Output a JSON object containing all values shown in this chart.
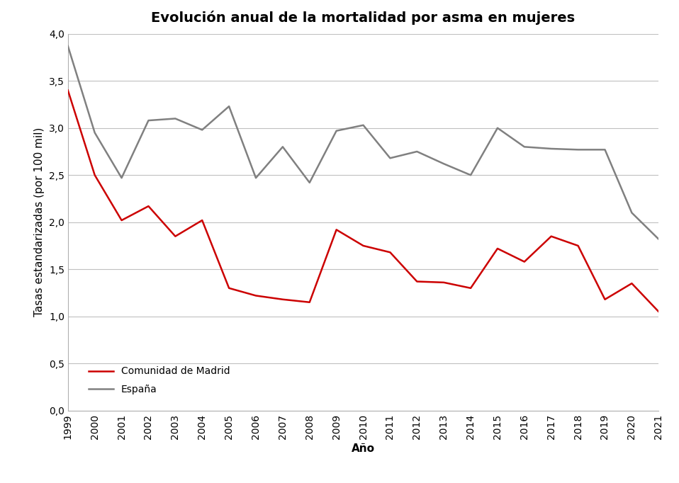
{
  "title": "Evolución anual de la mortalidad por asma en mujeres",
  "xlabel": "Año",
  "ylabel": "Tasas estandarizadas (por 100 mil)",
  "years": [
    1999,
    2000,
    2001,
    2002,
    2003,
    2004,
    2005,
    2006,
    2007,
    2008,
    2009,
    2010,
    2011,
    2012,
    2013,
    2014,
    2015,
    2016,
    2017,
    2018,
    2019,
    2020,
    2021
  ],
  "madrid": [
    3.4,
    2.5,
    2.02,
    2.17,
    1.85,
    2.02,
    1.3,
    1.22,
    1.18,
    1.15,
    1.92,
    1.75,
    1.68,
    1.37,
    1.36,
    1.3,
    1.72,
    1.58,
    1.85,
    1.75,
    1.18,
    1.35,
    1.05
  ],
  "espana": [
    3.87,
    2.95,
    2.47,
    3.08,
    3.1,
    2.98,
    3.23,
    2.47,
    2.8,
    2.42,
    2.97,
    3.03,
    2.68,
    2.75,
    2.62,
    2.5,
    3.0,
    2.8,
    2.78,
    2.77,
    2.77,
    2.1,
    1.82
  ],
  "madrid_color": "#cc0000",
  "espana_color": "#808080",
  "ylim": [
    0.0,
    4.0
  ],
  "yticks": [
    0.0,
    0.5,
    1.0,
    1.5,
    2.0,
    2.5,
    3.0,
    3.5,
    4.0
  ],
  "ytick_labels": [
    "0,0",
    "0,5",
    "1,0",
    "1,5",
    "2,0",
    "2,5",
    "3,0",
    "3,5",
    "4,0"
  ],
  "title_fontsize": 14,
  "axis_label_fontsize": 11,
  "tick_fontsize": 10,
  "legend_madrid": "Comunidad de Madrid",
  "legend_espana": "España",
  "bg_color": "#ffffff",
  "grid_color": "#c0c0c0",
  "line_width": 1.8
}
